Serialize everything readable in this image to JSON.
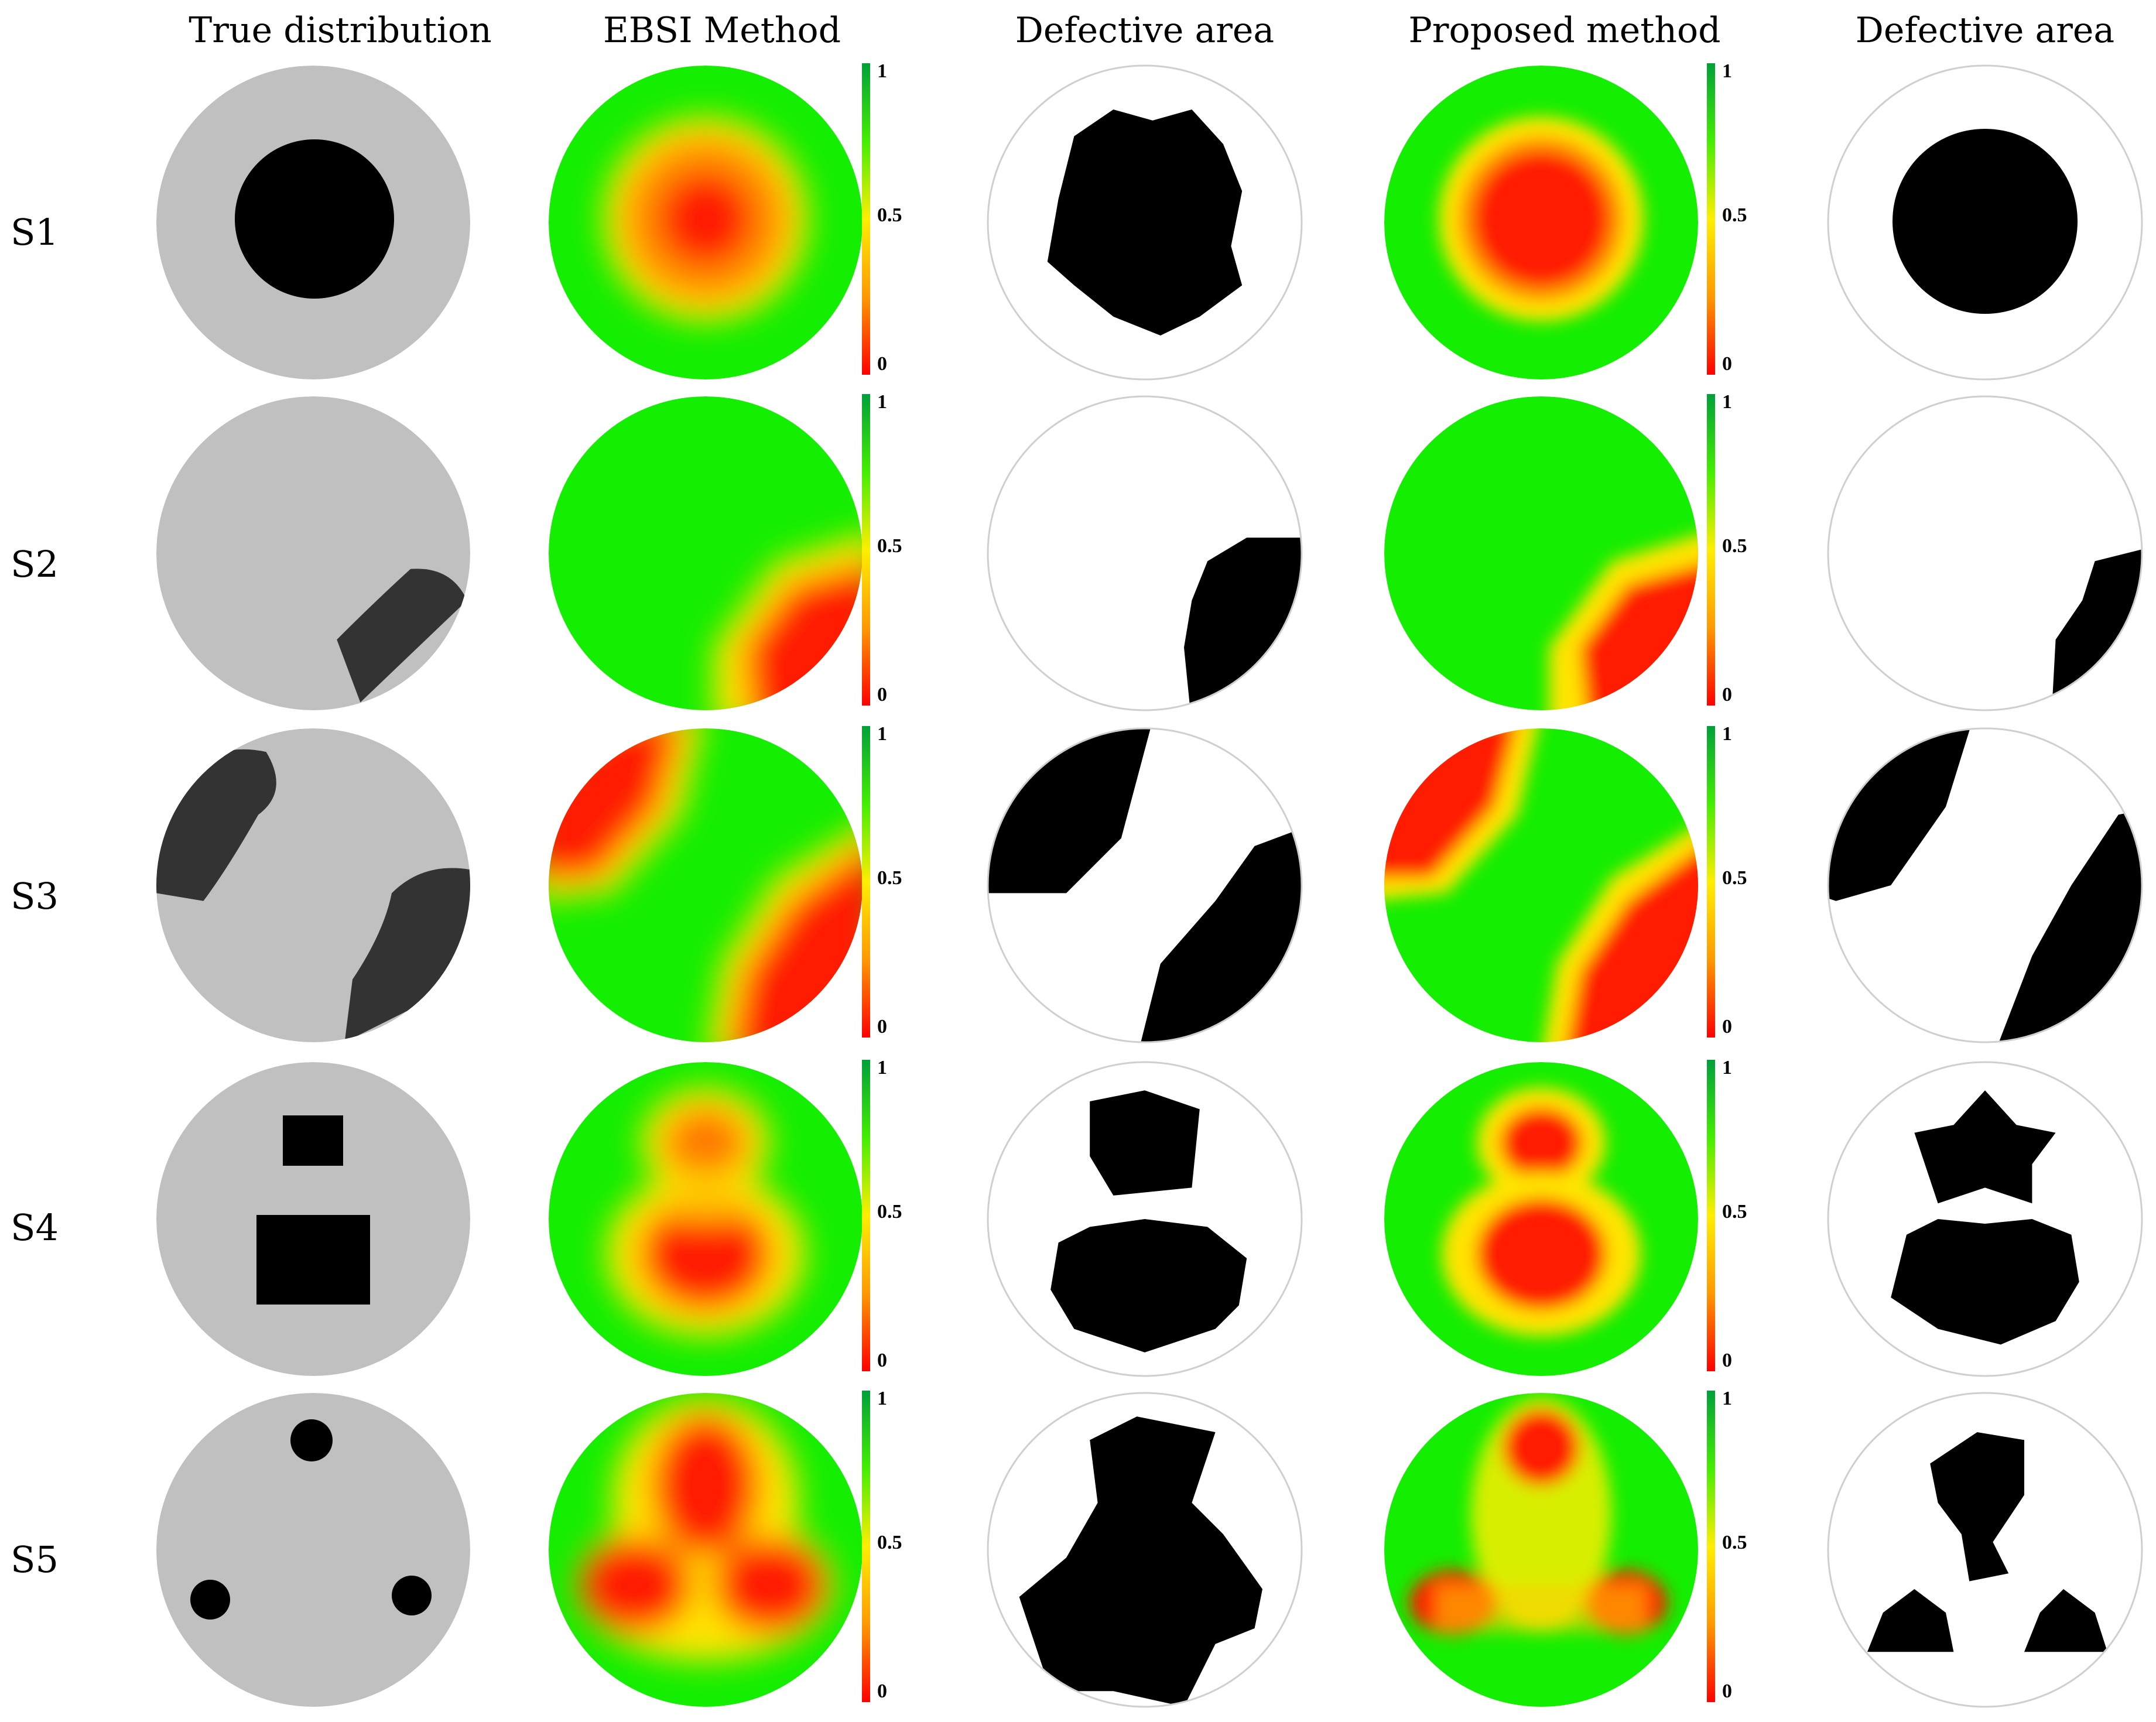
{
  "columns": [
    {
      "title": "True distribution"
    },
    {
      "title": "EBSI Method"
    },
    {
      "title": "Defective area"
    },
    {
      "title": "Proposed method"
    },
    {
      "title": "Defective area"
    }
  ],
  "rows": [
    {
      "label": "S1"
    },
    {
      "label": "S2"
    },
    {
      "label": "S3"
    },
    {
      "label": "S4"
    },
    {
      "label": "S5"
    }
  ],
  "colorbar": {
    "ticks": [
      "1",
      "0.5",
      "0"
    ],
    "colors": {
      "high": "#00a03a",
      "mid_high": "#44ee00",
      "mid": "#ffee00",
      "mid_low": "#ff9900",
      "low": "#ff0000"
    }
  },
  "colors": {
    "background_gray": "#c0c0c0",
    "defect_dark": "#333333",
    "defect_black": "#000000",
    "map_green": "#14ee00",
    "map_red": "#ff1a00",
    "map_yellow": "#ffe400"
  }
}
